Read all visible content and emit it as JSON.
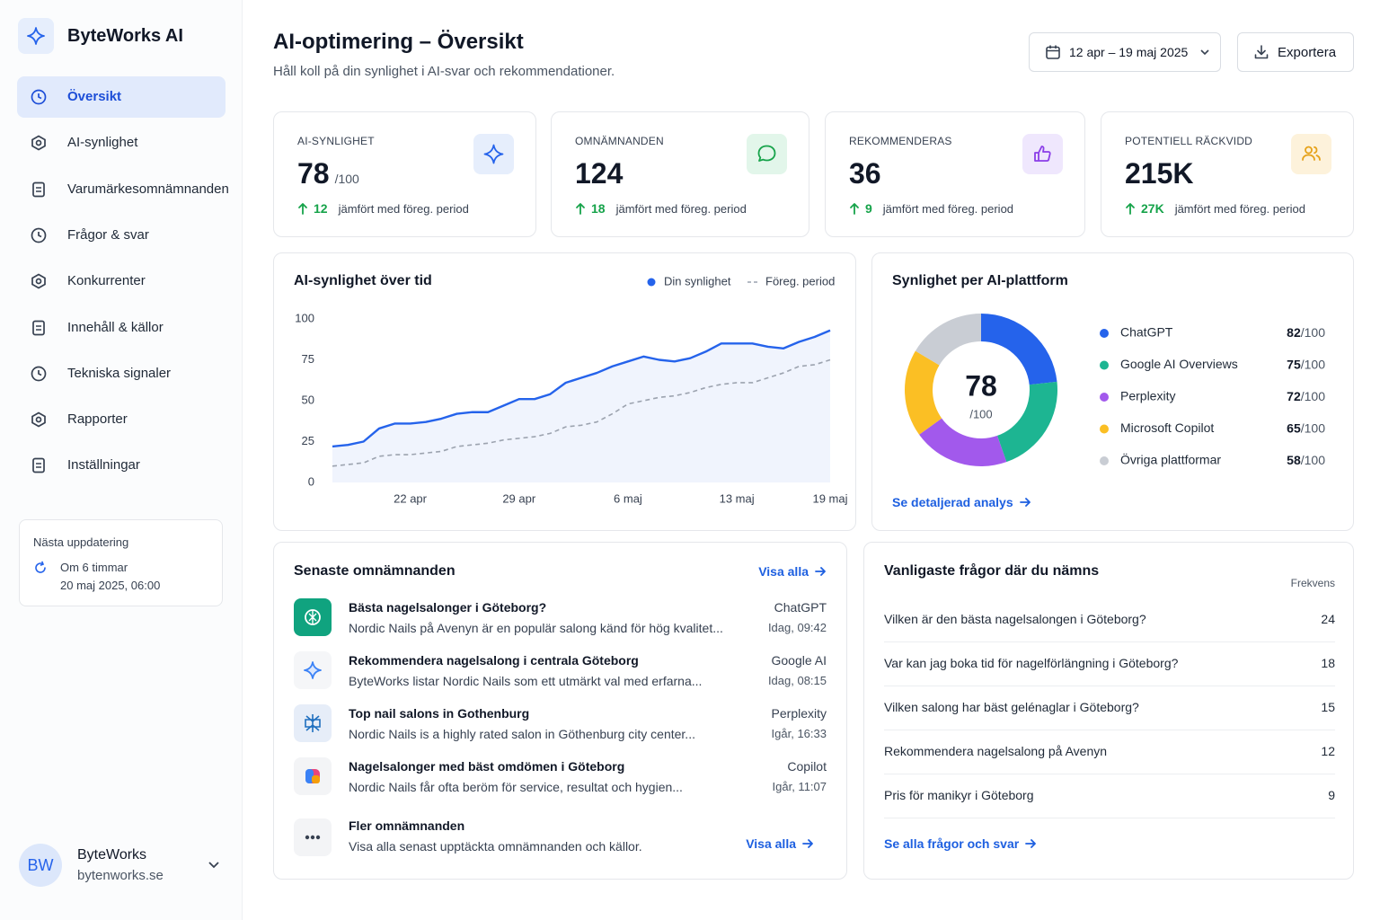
{
  "sidebar": {
    "brand": "ByteWorks AI",
    "nav": [
      "Översikt",
      "AI-synlighet",
      "Varumärkesomnämnanden",
      "Frågor & svar",
      "Konkurrenter",
      "Innehåll & källor",
      "Tekniska signaler",
      "Rapporter",
      "Inställningar"
    ],
    "update": {
      "title": "Nästa uppdatering",
      "when": "Om 6 timmar",
      "date": "20 maj 2025, 06:00"
    },
    "user": {
      "initials": "BW",
      "name": "ByteWorks",
      "domain": "bytenworks.se"
    }
  },
  "header": {
    "title": "AI-optimering – Översikt",
    "subtitle": "Håll koll på din synlighet i AI-svar och rekommendationer.",
    "date_range": "12 apr – 19 maj 2025",
    "export": "Exportera"
  },
  "kpis": [
    {
      "label": "AI-SYNLIGHET",
      "value": 78,
      "suffix": "/100",
      "delta": 12,
      "note": "jämfört med föreg. period"
    },
    {
      "label": "OMNÄMNANDEN",
      "value": 124,
      "delta": 18,
      "note": "jämfört med föreg. period"
    },
    {
      "label": "REKOMMENDERAS",
      "value": 36,
      "delta": 9,
      "note": "jämfört med föreg. period"
    },
    {
      "label": "POTENTIELL RÄCKVIDD",
      "value": "215K",
      "delta": "27K",
      "note": "jämfört med föreg. period"
    }
  ],
  "chart_data": [
    {
      "type": "line",
      "title": "AI-synlighet över tid",
      "categories": [
        null,
        null,
        null,
        null,
        null,
        "22 apr",
        null,
        null,
        null,
        null,
        null,
        null,
        "29 apr",
        null,
        null,
        null,
        null,
        null,
        null,
        "6 maj",
        null,
        null,
        null,
        null,
        null,
        null,
        "13 maj",
        null,
        null,
        null,
        null,
        null,
        "19 maj"
      ],
      "series": [
        {
          "name": "Din synlighet",
          "color": "#2563eb",
          "values": [
            22,
            23,
            25,
            33,
            36,
            36,
            37,
            39,
            42,
            43,
            43,
            47,
            51,
            51,
            54,
            61,
            64,
            67,
            71,
            74,
            77,
            75,
            74,
            76,
            80,
            85,
            85,
            85,
            83,
            82,
            86,
            89,
            93
          ]
        },
        {
          "name": "Föreg. period",
          "color": "#9ca3af",
          "dashed": true,
          "values": [
            10,
            11,
            12,
            16,
            17,
            17,
            18,
            19,
            22,
            23,
            24,
            26,
            27,
            28,
            30,
            34,
            35,
            37,
            42,
            48,
            50,
            52,
            53,
            55,
            58,
            60,
            61,
            61,
            64,
            67,
            71,
            72,
            75
          ]
        }
      ],
      "ylim": [
        0,
        100
      ],
      "yticks": [
        0,
        25,
        50,
        75,
        100
      ],
      "grid": false,
      "legend": "top-right"
    },
    {
      "type": "donut",
      "title": "Synlighet per AI-plattform",
      "categories": [
        "ChatGPT",
        "Google AI Overviews",
        "Perplexity",
        "Microsoft Copilot",
        "Övriga plattformar"
      ],
      "values": [
        82,
        75,
        72,
        65,
        58
      ],
      "value_suffix": "/100",
      "colors": [
        "#2563eb",
        "#1db592",
        "#a259ec",
        "#fbbf24",
        "#c9cdd4"
      ],
      "center": 78,
      "center_suffix": "/100",
      "link": "Se detaljerad analys"
    }
  ],
  "mentions": {
    "title": "Senaste omnämnanden",
    "link": "Visa alla",
    "items": [
      {
        "title": "Bästa nagelsalonger i Göteborg?",
        "snippet": "Nordic Nails på Avenyn är en populär salong känd för hög kvalitet...",
        "source": "ChatGPT",
        "time": "Idag, 09:42"
      },
      {
        "title": "Rekommendera nagelsalong i centrala Göteborg",
        "snippet": "ByteWorks listar Nordic Nails som ett utmärkt val med erfarna...",
        "source": "Google AI",
        "time": "Idag, 08:15"
      },
      {
        "title": "Top nail salons in Gothenburg",
        "snippet": "Nordic Nails is a highly rated salon in Göthenburg city center...",
        "source": "Perplexity",
        "time": "Igår, 16:33"
      },
      {
        "title": "Nagelsalonger med bäst omdömen i Göteborg",
        "snippet": "Nordic Nails får ofta beröm för service, resultat och hygien...",
        "source": "Copilot",
        "time": "Igår, 11:07"
      }
    ],
    "more": {
      "title": "Fler omnämnanden",
      "text": "Visa alla senast upptäckta omnämnanden och källor.",
      "link": "Visa alla"
    }
  },
  "questions": {
    "title": "Vanligaste frågor där du nämns",
    "column": "Frekvens",
    "rows": [
      {
        "question": "Vilken är den bästa nagelsalongen i Göteborg?",
        "count": 24
      },
      {
        "question": "Var kan jag boka tid för nagelförlängning i Göteborg?",
        "count": 18
      },
      {
        "question": "Vilken salong har bäst gelénaglar i Göteborg?",
        "count": 15
      },
      {
        "question": "Rekommendera nagelsalong på Avenyn",
        "count": 12
      },
      {
        "question": "Pris för manikyr i Göteborg",
        "count": 9
      }
    ],
    "link": "Se alla frågor och svar"
  }
}
